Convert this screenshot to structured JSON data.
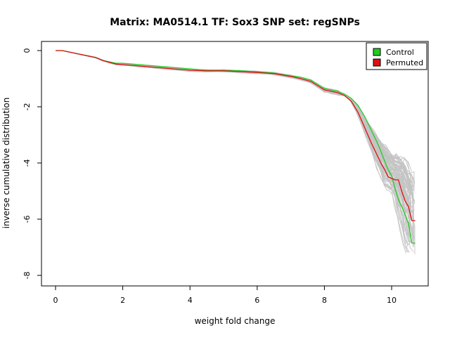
{
  "chart_data": {
    "type": "line",
    "title": "Matrix: MA0514.1 TF: Sox3 SNP set: regSNPs",
    "xlabel": "weight fold change",
    "ylabel": "inverse cumulative distribution",
    "xlim": [
      0,
      10.7
    ],
    "ylim": [
      -8,
      0
    ],
    "x_ticks": [
      0,
      2,
      4,
      6,
      8,
      10
    ],
    "y_ticks": [
      0,
      -2,
      -4,
      -6,
      -8
    ],
    "grid": false,
    "legend_position": "top-right",
    "colors": {
      "control": "#22cc22",
      "permuted": "#dd1111",
      "background_series": "#c4c4c4"
    },
    "series": [
      {
        "name": "Control",
        "color": "#22cc22",
        "x": [
          0,
          0.2,
          0.4,
          0.6,
          0.8,
          1.0,
          1.2,
          1.4,
          1.6,
          1.8,
          2.0,
          2.5,
          3.0,
          3.5,
          4.0,
          4.5,
          5.0,
          5.5,
          6.0,
          6.5,
          7.0,
          7.3,
          7.6,
          7.8,
          8.0,
          8.2,
          8.4,
          8.6,
          8.8,
          9.0,
          9.2,
          9.4,
          9.6,
          9.8,
          9.9,
          10.0,
          10.1,
          10.2,
          10.3,
          10.4,
          10.5,
          10.6,
          10.7
        ],
        "y": [
          0,
          0,
          -0.05,
          -0.1,
          -0.15,
          -0.2,
          -0.25,
          -0.35,
          -0.4,
          -0.45,
          -0.45,
          -0.5,
          -0.55,
          -0.6,
          -0.65,
          -0.7,
          -0.7,
          -0.72,
          -0.75,
          -0.8,
          -0.9,
          -0.95,
          -1.05,
          -1.2,
          -1.35,
          -1.4,
          -1.45,
          -1.55,
          -1.7,
          -1.95,
          -2.35,
          -2.85,
          -3.35,
          -3.95,
          -4.25,
          -4.45,
          -4.9,
          -5.3,
          -5.55,
          -5.85,
          -6.15,
          -6.85,
          -6.85
        ]
      },
      {
        "name": "Permuted",
        "color": "#dd1111",
        "x": [
          0,
          0.2,
          0.4,
          0.6,
          0.8,
          1.0,
          1.2,
          1.4,
          1.6,
          1.8,
          2.0,
          2.5,
          3.0,
          3.5,
          4.0,
          4.5,
          5.0,
          5.5,
          6.0,
          6.5,
          7.0,
          7.3,
          7.6,
          7.8,
          8.0,
          8.2,
          8.4,
          8.6,
          8.8,
          9.0,
          9.2,
          9.4,
          9.6,
          9.7,
          9.8,
          9.9,
          10.0,
          10.1,
          10.2,
          10.3,
          10.4,
          10.5,
          10.6,
          10.7
        ],
        "y": [
          0,
          0,
          -0.05,
          -0.1,
          -0.15,
          -0.2,
          -0.25,
          -0.35,
          -0.42,
          -0.48,
          -0.5,
          -0.55,
          -0.6,
          -0.65,
          -0.7,
          -0.72,
          -0.72,
          -0.75,
          -0.78,
          -0.82,
          -0.92,
          -1.0,
          -1.1,
          -1.25,
          -1.4,
          -1.45,
          -1.5,
          -1.6,
          -1.8,
          -2.2,
          -2.75,
          -3.3,
          -3.8,
          -4.05,
          -4.25,
          -4.5,
          -4.55,
          -4.6,
          -4.6,
          -5.0,
          -5.35,
          -5.55,
          -6.05,
          -6.05
        ]
      }
    ]
  }
}
